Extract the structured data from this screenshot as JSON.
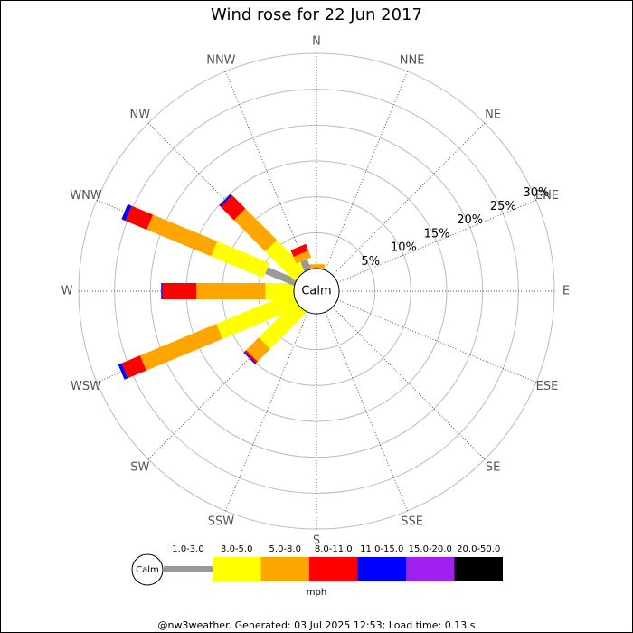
{
  "chart_data": {
    "type": "windrose",
    "title": "Wind rose for 22 Jun 2017",
    "categories": [
      "N",
      "NNE",
      "NE",
      "ENE",
      "E",
      "ESE",
      "SE",
      "SSE",
      "S",
      "SSW",
      "SW",
      "WSW",
      "W",
      "WNW",
      "NW",
      "NNW"
    ],
    "series": [
      {
        "name": "1.0-3.0",
        "color": "#999999",
        "values": [
          0,
          0,
          0,
          0,
          0,
          0,
          0,
          0,
          0,
          0,
          0,
          0,
          0,
          4.4,
          0,
          1.5
        ]
      },
      {
        "name": "3.0-5.0",
        "color": "#ffff00",
        "values": [
          0,
          0,
          0,
          0,
          0,
          0,
          0,
          0,
          0,
          0,
          7.1,
          11.5,
          4.0,
          7.9,
          5.8,
          0
        ]
      },
      {
        "name": "5.0-8.0",
        "color": "#ffa500",
        "values": [
          0.6,
          0,
          0,
          0,
          0,
          0,
          0,
          0,
          0,
          0,
          2.5,
          11.5,
          9.6,
          9.7,
          6.2,
          1.0
        ]
      },
      {
        "name": "8.0-11.0",
        "color": "#ff0000",
        "values": [
          0,
          0,
          0,
          0,
          0,
          0,
          0,
          0,
          0,
          0,
          0.3,
          2.8,
          4.7,
          3.2,
          2.6,
          1.0
        ]
      },
      {
        "name": "11.0-15.0",
        "color": "#0000ff",
        "values": [
          0,
          0,
          0,
          0,
          0,
          0,
          0,
          0,
          0,
          0,
          0.2,
          0.5,
          0.2,
          0.6,
          0.3,
          0
        ]
      },
      {
        "name": "15.0-20.0",
        "color": "#a020f0",
        "values": [
          0,
          0,
          0,
          0,
          0,
          0,
          0,
          0,
          0,
          0,
          0,
          0,
          0,
          0,
          0,
          0
        ]
      },
      {
        "name": "20.0-50.0",
        "color": "#000000",
        "values": [
          0,
          0,
          0,
          0,
          0,
          0,
          0,
          0,
          0,
          0,
          0,
          0,
          0,
          0,
          0,
          0
        ]
      }
    ],
    "ylim": [
      0,
      30
    ],
    "yticks": [
      {
        "value": 5,
        "label": "5%"
      },
      {
        "value": 10,
        "label": "10%"
      },
      {
        "value": 15,
        "label": "15%"
      },
      {
        "value": 20,
        "label": "20%"
      },
      {
        "value": 25,
        "label": "25%"
      },
      {
        "value": 30,
        "label": "30%"
      }
    ],
    "center_label": "Calm",
    "units": "mph",
    "footer": "@nw3weather. Generated: 03 Jul 2025 12:53; Load time: 0.13 s"
  }
}
